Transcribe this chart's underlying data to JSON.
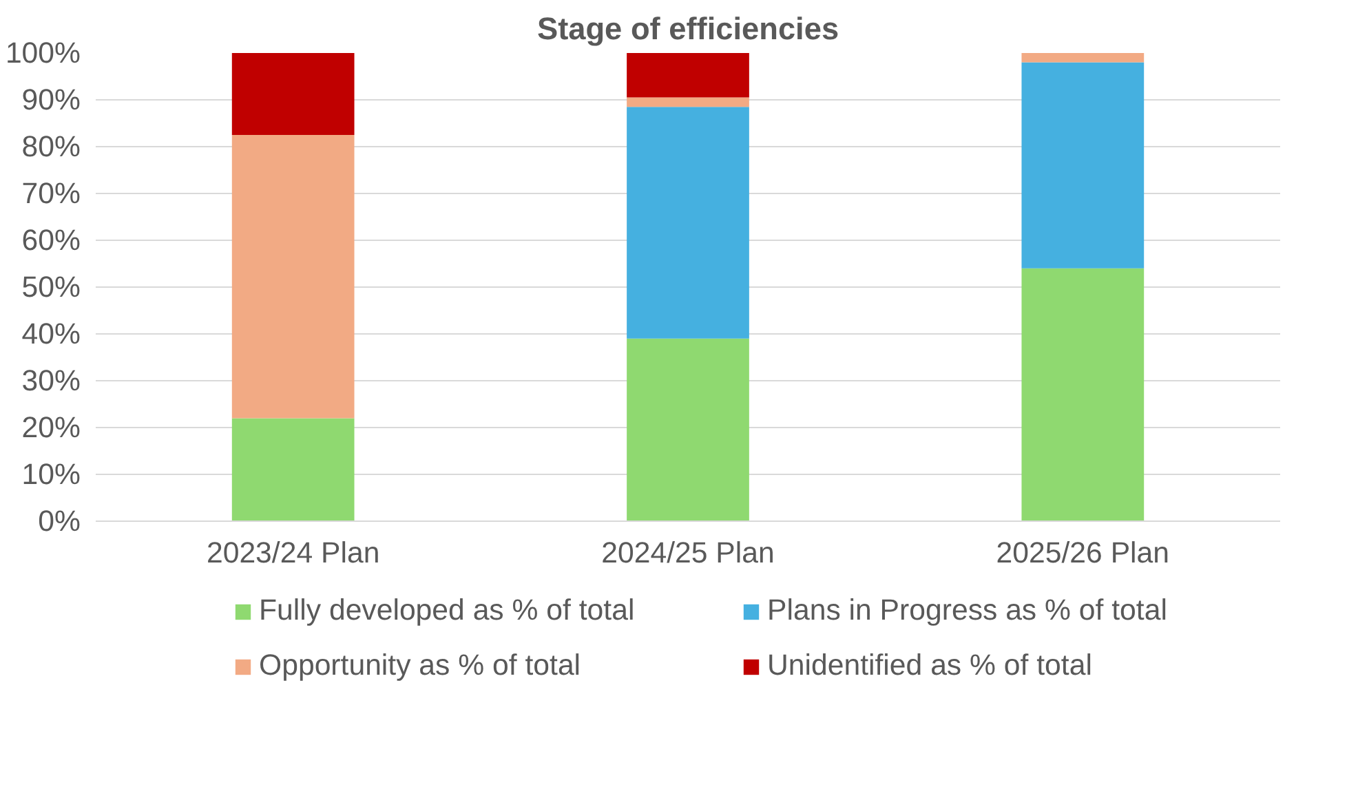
{
  "chart_data": {
    "type": "bar",
    "title": "Stage of efficiencies",
    "categories": [
      "2023/24 Plan",
      "2024/25 Plan",
      "2025/26 Plan"
    ],
    "stacked": true,
    "series": [
      {
        "name": "Fully developed as % of total",
        "color": "#8fd970",
        "values": [
          22,
          39,
          54
        ]
      },
      {
        "name": "Plans in Progress as % of total",
        "color": "#45b0e0",
        "values": [
          0,
          49.5,
          44
        ]
      },
      {
        "name": "Opportunity as % of total",
        "color": "#f2aa84",
        "values": [
          60.5,
          2,
          2
        ]
      },
      {
        "name": "Unidentified as % of total",
        "color": "#c00000",
        "values": [
          17.5,
          9.5,
          0
        ]
      }
    ],
    "ylim": [
      0,
      100
    ],
    "yticks": [
      {
        "value": 0,
        "label": "0%"
      },
      {
        "value": 10,
        "label": "10%"
      },
      {
        "value": 20,
        "label": "20%"
      },
      {
        "value": 30,
        "label": "30%"
      },
      {
        "value": 40,
        "label": "40%"
      },
      {
        "value": 50,
        "label": "50%"
      },
      {
        "value": 60,
        "label": "60%"
      },
      {
        "value": 70,
        "label": "70%"
      },
      {
        "value": 80,
        "label": "80%"
      },
      {
        "value": 90,
        "label": "90%"
      },
      {
        "value": 100,
        "label": "100%"
      }
    ],
    "grid": "y",
    "legend": "bottom"
  }
}
